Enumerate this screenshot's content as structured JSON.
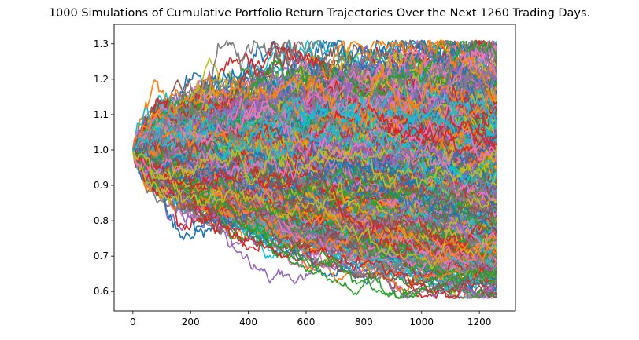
{
  "chart_data": {
    "type": "line",
    "title": "1000 Simulations of Cumulative Portfolio Return Trajectories Over the Next 1260 Trading Days.",
    "xlabel": "",
    "ylabel": "",
    "n_simulations": 1000,
    "n_days": 1260,
    "start_value": 1.0,
    "xlim": [
      -65,
      1325
    ],
    "ylim": [
      0.545,
      1.355
    ],
    "x_ticks": [
      0,
      200,
      400,
      600,
      800,
      1000,
      1200
    ],
    "y_ticks": [
      0.6,
      0.7,
      0.8,
      0.9,
      1.0,
      1.1,
      1.2,
      1.3
    ],
    "x_tick_labels": [
      "0",
      "200",
      "400",
      "600",
      "800",
      "1000",
      "1200"
    ],
    "y_tick_labels": [
      "0.6",
      "0.7",
      "0.8",
      "0.9",
      "1.0",
      "1.1",
      "1.2",
      "1.3"
    ],
    "final_value_range": [
      0.58,
      1.26
    ],
    "max_value": 1.31,
    "min_value": 0.58,
    "grid": false,
    "legend": "none",
    "colors": [
      "#1f77b4",
      "#ff7f0e",
      "#2ca02c",
      "#d62728",
      "#9467bd",
      "#8c564b",
      "#e377c2",
      "#7f7f7f",
      "#bcbd22",
      "#17becf"
    ]
  }
}
